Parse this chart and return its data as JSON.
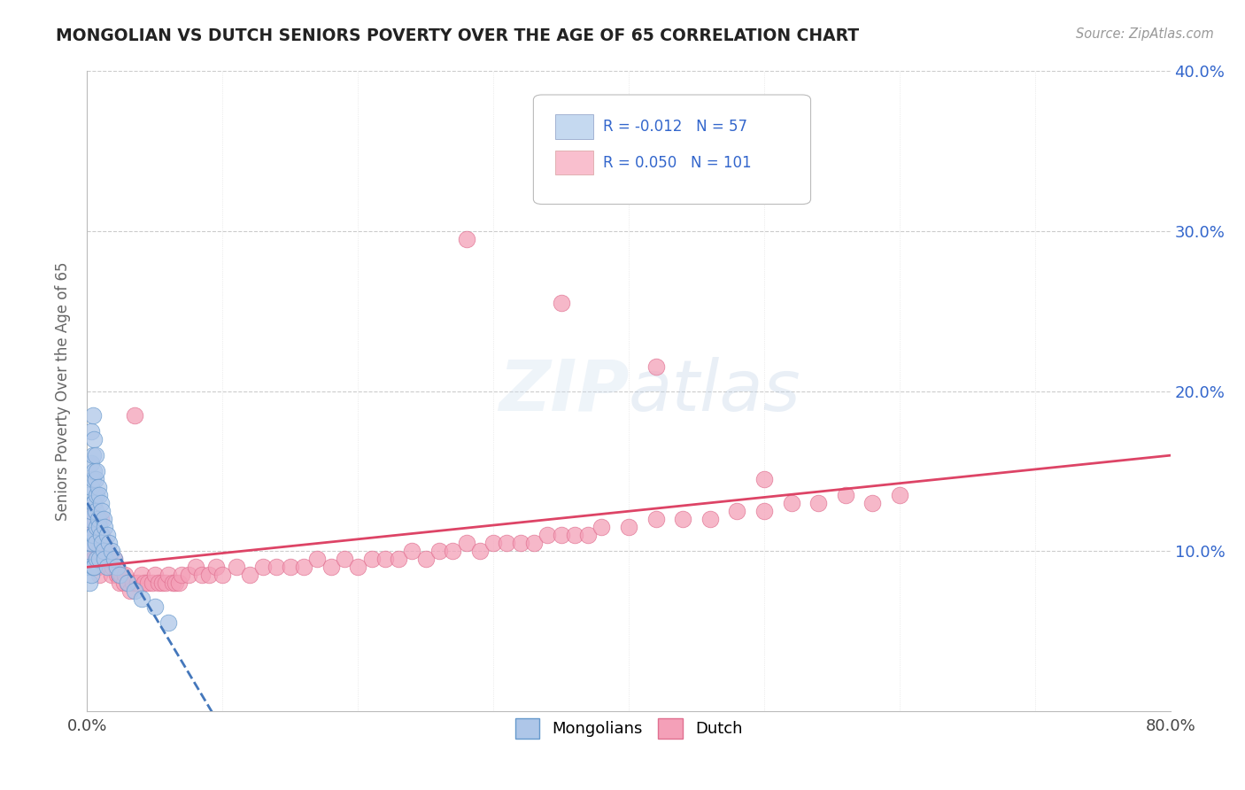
{
  "title": "MONGOLIAN VS DUTCH SENIORS POVERTY OVER THE AGE OF 65 CORRELATION CHART",
  "source": "Source: ZipAtlas.com",
  "ylabel": "Seniors Poverty Over the Age of 65",
  "xlim": [
    0.0,
    0.8
  ],
  "ylim": [
    0.0,
    0.4
  ],
  "ytick_vals": [
    0.0,
    0.1,
    0.2,
    0.3,
    0.4
  ],
  "xtick_vals": [
    0.0,
    0.1,
    0.2,
    0.3,
    0.4,
    0.5,
    0.6,
    0.7,
    0.8
  ],
  "mongolian_color": "#aec6e8",
  "dutch_color": "#f4a0b8",
  "mongolian_edge": "#6699cc",
  "dutch_edge": "#e07090",
  "trend_mongolian_color": "#4477bb",
  "trend_dutch_color": "#dd4466",
  "legend_box_mongolian": "#c5d9f0",
  "legend_box_dutch": "#f9bfce",
  "mongolian_R": -0.012,
  "mongolian_N": 57,
  "dutch_R": 0.05,
  "dutch_N": 101,
  "background_color": "#ffffff",
  "grid_color": "#cccccc",
  "mongolian_x": [
    0.001,
    0.001,
    0.001,
    0.002,
    0.002,
    0.002,
    0.002,
    0.003,
    0.003,
    0.003,
    0.003,
    0.003,
    0.003,
    0.004,
    0.004,
    0.004,
    0.004,
    0.004,
    0.004,
    0.005,
    0.005,
    0.005,
    0.005,
    0.005,
    0.006,
    0.006,
    0.006,
    0.006,
    0.007,
    0.007,
    0.007,
    0.007,
    0.008,
    0.008,
    0.009,
    0.009,
    0.009,
    0.01,
    0.01,
    0.011,
    0.011,
    0.012,
    0.012,
    0.013,
    0.013,
    0.015,
    0.015,
    0.016,
    0.018,
    0.02,
    0.022,
    0.024,
    0.03,
    0.035,
    0.04,
    0.05,
    0.06
  ],
  "mongolian_y": [
    0.115,
    0.135,
    0.095,
    0.105,
    0.12,
    0.09,
    0.08,
    0.175,
    0.155,
    0.14,
    0.125,
    0.105,
    0.085,
    0.185,
    0.16,
    0.145,
    0.13,
    0.11,
    0.09,
    0.17,
    0.15,
    0.13,
    0.11,
    0.09,
    0.16,
    0.145,
    0.125,
    0.105,
    0.15,
    0.135,
    0.115,
    0.095,
    0.14,
    0.12,
    0.135,
    0.115,
    0.095,
    0.13,
    0.11,
    0.125,
    0.105,
    0.12,
    0.1,
    0.115,
    0.095,
    0.11,
    0.09,
    0.105,
    0.1,
    0.095,
    0.09,
    0.085,
    0.08,
    0.075,
    0.07,
    0.065,
    0.055
  ],
  "dutch_x": [
    0.001,
    0.002,
    0.003,
    0.004,
    0.004,
    0.005,
    0.005,
    0.006,
    0.006,
    0.007,
    0.007,
    0.008,
    0.008,
    0.009,
    0.009,
    0.01,
    0.01,
    0.011,
    0.012,
    0.013,
    0.014,
    0.015,
    0.016,
    0.017,
    0.018,
    0.019,
    0.02,
    0.021,
    0.022,
    0.023,
    0.024,
    0.025,
    0.027,
    0.028,
    0.03,
    0.032,
    0.034,
    0.035,
    0.037,
    0.04,
    0.042,
    0.045,
    0.048,
    0.05,
    0.053,
    0.055,
    0.058,
    0.06,
    0.063,
    0.065,
    0.068,
    0.07,
    0.075,
    0.08,
    0.085,
    0.09,
    0.095,
    0.1,
    0.11,
    0.12,
    0.13,
    0.14,
    0.15,
    0.16,
    0.17,
    0.18,
    0.19,
    0.2,
    0.21,
    0.22,
    0.23,
    0.24,
    0.25,
    0.26,
    0.27,
    0.28,
    0.29,
    0.3,
    0.31,
    0.32,
    0.33,
    0.34,
    0.35,
    0.36,
    0.37,
    0.38,
    0.4,
    0.42,
    0.44,
    0.46,
    0.48,
    0.5,
    0.52,
    0.54,
    0.56,
    0.58,
    0.6,
    0.28,
    0.35,
    0.42,
    0.5
  ],
  "dutch_y": [
    0.105,
    0.115,
    0.125,
    0.11,
    0.095,
    0.115,
    0.095,
    0.115,
    0.095,
    0.11,
    0.09,
    0.105,
    0.09,
    0.1,
    0.085,
    0.12,
    0.095,
    0.11,
    0.105,
    0.1,
    0.095,
    0.1,
    0.095,
    0.09,
    0.085,
    0.09,
    0.095,
    0.09,
    0.085,
    0.085,
    0.08,
    0.085,
    0.08,
    0.085,
    0.08,
    0.075,
    0.08,
    0.185,
    0.08,
    0.085,
    0.08,
    0.08,
    0.08,
    0.085,
    0.08,
    0.08,
    0.08,
    0.085,
    0.08,
    0.08,
    0.08,
    0.085,
    0.085,
    0.09,
    0.085,
    0.085,
    0.09,
    0.085,
    0.09,
    0.085,
    0.09,
    0.09,
    0.09,
    0.09,
    0.095,
    0.09,
    0.095,
    0.09,
    0.095,
    0.095,
    0.095,
    0.1,
    0.095,
    0.1,
    0.1,
    0.105,
    0.1,
    0.105,
    0.105,
    0.105,
    0.105,
    0.11,
    0.11,
    0.11,
    0.11,
    0.115,
    0.115,
    0.12,
    0.12,
    0.12,
    0.125,
    0.125,
    0.13,
    0.13,
    0.135,
    0.13,
    0.135,
    0.295,
    0.255,
    0.215,
    0.145
  ]
}
